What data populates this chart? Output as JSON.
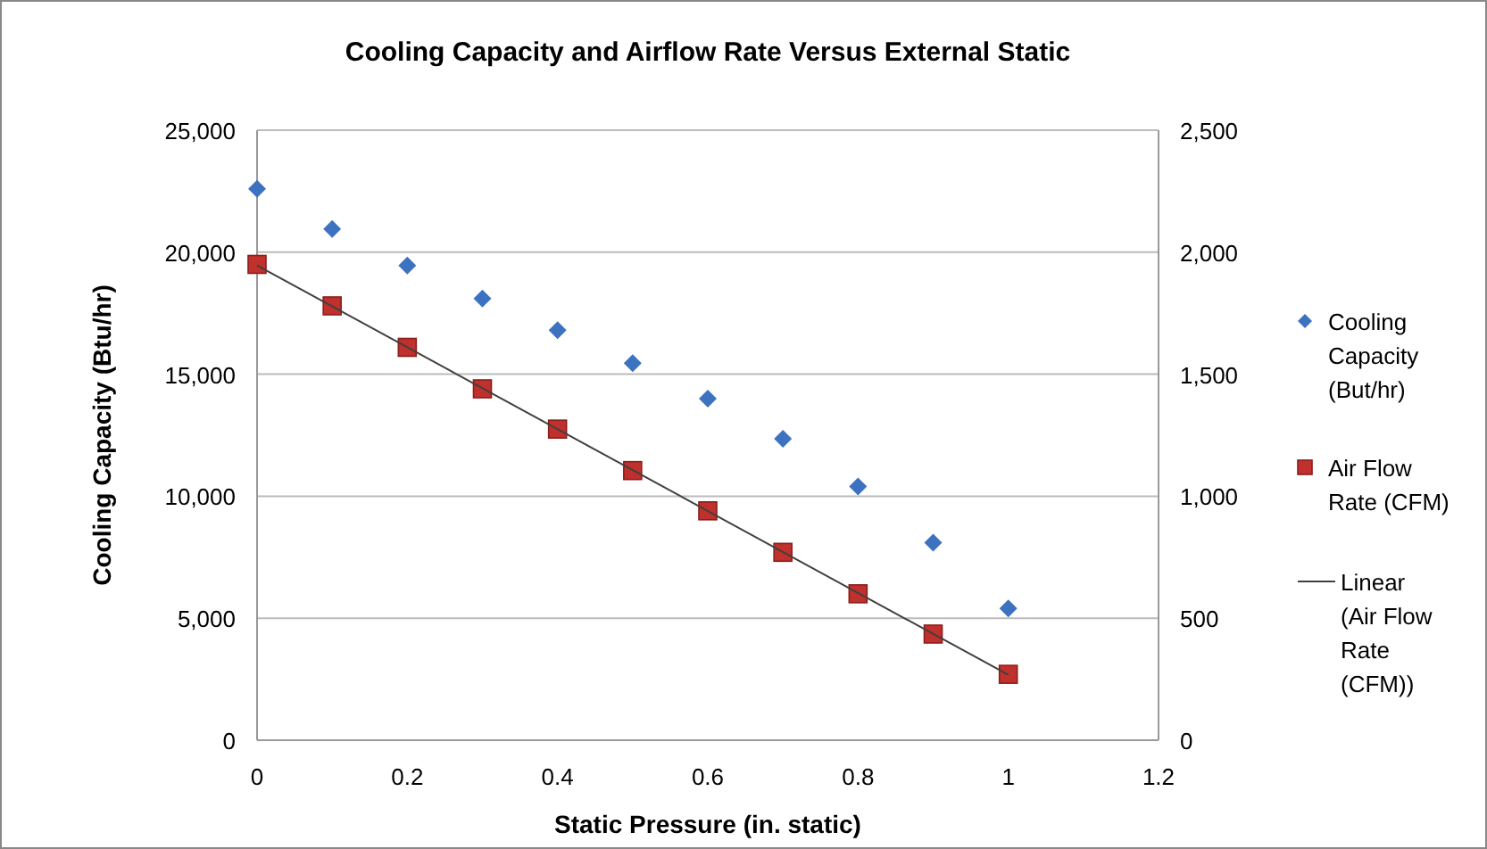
{
  "chart_data": {
    "type": "scatter",
    "title": "Cooling Capacity and Airflow Rate Versus External Static",
    "xlabel": "Static Pressure (in. static)",
    "ylabel": "Cooling Capacity (Btu/hr)",
    "x": [
      0,
      0.1,
      0.2,
      0.3,
      0.4,
      0.5,
      0.6,
      0.7,
      0.8,
      0.9,
      1
    ],
    "series": [
      {
        "name": "Cooling Capacity (But/hr)",
        "color": "#3d72c0",
        "marker": "diamond",
        "values": [
          22600,
          20950,
          19450,
          18100,
          16800,
          15450,
          14000,
          12350,
          10400,
          8100,
          5400
        ]
      },
      {
        "name": "Air Flow Rate (CFM)",
        "color": "#c0302c",
        "marker": "square",
        "axis": "y2",
        "values": [
          1950,
          1780,
          1610,
          1440,
          1275,
          1105,
          940,
          770,
          600,
          435,
          270
        ]
      },
      {
        "name": "Linear (Air Flow Rate (CFM))",
        "type": "line",
        "color": "#404040",
        "marker": "none",
        "axis": "y2",
        "x": [
          0,
          1
        ],
        "values": [
          1946,
          268
        ]
      }
    ],
    "xlim": [
      0,
      1.2
    ],
    "xticks": [
      0,
      0.2,
      0.4,
      0.6,
      0.8,
      1,
      1.2
    ],
    "ylim": [
      0,
      25000
    ],
    "yticks": [
      {
        "value": 0,
        "label": "0"
      },
      {
        "value": 5000,
        "label": "5,000"
      },
      {
        "value": 10000,
        "label": "10,000"
      },
      {
        "value": 15000,
        "label": "15,000"
      },
      {
        "value": 20000,
        "label": "20,000"
      },
      {
        "value": 25000,
        "label": "25,000"
      }
    ],
    "y2lim": [
      0,
      2500
    ],
    "y2ticks": [
      {
        "value": 0,
        "label": "0"
      },
      {
        "value": 500,
        "label": "500"
      },
      {
        "value": 1000,
        "label": "1,000"
      },
      {
        "value": 1500,
        "label": "1,500"
      },
      {
        "value": 2000,
        "label": "2,000"
      },
      {
        "value": 2500,
        "label": "2,500"
      }
    ],
    "grid": "y",
    "legend": "right"
  }
}
